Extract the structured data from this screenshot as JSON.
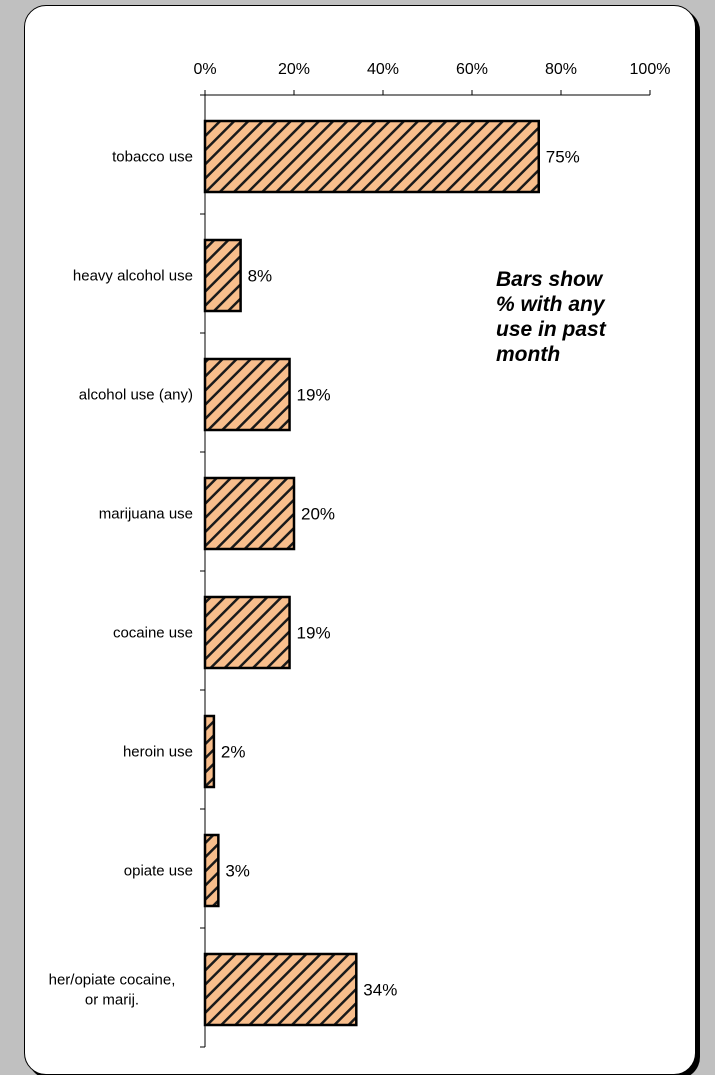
{
  "chart_data": {
    "type": "bar",
    "orientation": "horizontal",
    "categories": [
      "tobacco use",
      "heavy alcohol use",
      "alcohol use (any)",
      "marijuana use",
      "cocaine use",
      "heroin use",
      "opiate use",
      "her/opiate cocaine, or marij."
    ],
    "category_lines": [
      [
        "tobacco use"
      ],
      [
        "heavy alcohol use"
      ],
      [
        "alcohol use (any)"
      ],
      [
        "marijuana use"
      ],
      [
        "cocaine use"
      ],
      [
        "heroin use"
      ],
      [
        "opiate use"
      ],
      [
        "her/opiate cocaine,",
        "or marij."
      ]
    ],
    "values": [
      75,
      8,
      19,
      20,
      19,
      2,
      3,
      34
    ],
    "data_labels": [
      "75%",
      "8%",
      "19%",
      "20%",
      "19%",
      "2%",
      "3%",
      "34%"
    ],
    "xlim": [
      0,
      100
    ],
    "x_ticks": [
      0,
      20,
      40,
      60,
      80,
      100
    ],
    "x_tick_labels": [
      "0%",
      "20%",
      "40%",
      "60%",
      "80%",
      "100%"
    ],
    "x_axis_position": "top",
    "grid": false,
    "legend": "none",
    "annotation": "Bars show % with any use in past month",
    "annotation_lines": [
      "Bars show",
      "% with any",
      "use in past",
      "month"
    ],
    "colors": {
      "bar_fill": "#f8be8c",
      "bar_hatch": "#1a1a1a",
      "bar_border": "#000000",
      "background": "#c0c0c0",
      "panel": "#ffffff"
    }
  }
}
